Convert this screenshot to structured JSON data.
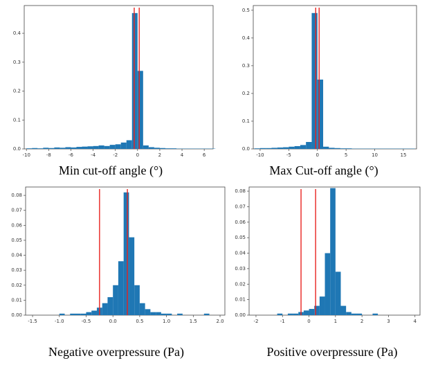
{
  "chart_data": [
    {
      "type": "histogram",
      "xlabel": "Min cut-off angle (°)",
      "color": "#1f77b4",
      "vline_color": "#e8231f",
      "bins": [
        -10,
        -9.5,
        -9,
        -8.5,
        -8,
        -7.5,
        -7,
        -6.5,
        -6,
        -5.5,
        -5,
        -4.5,
        -4,
        -3.5,
        -3,
        -2.5,
        -2,
        -1.5,
        -1,
        -0.5,
        0,
        0.5,
        1,
        1.5,
        2,
        2.5,
        3,
        3.5,
        4,
        4.5,
        5,
        5.5,
        6,
        6.5,
        7
      ],
      "values": [
        0.002,
        0.003,
        0.002,
        0.004,
        0.003,
        0.005,
        0.004,
        0.006,
        0.005,
        0.007,
        0.008,
        0.009,
        0.01,
        0.012,
        0.01,
        0.014,
        0.016,
        0.022,
        0.03,
        0.47,
        0.27,
        0.012,
        0.006,
        0.004,
        0.003,
        0.002,
        0.002,
        0.001,
        0.001,
        0.001,
        0.001,
        0.001,
        0.001,
        0.001
      ],
      "vlines": [
        -0.3,
        0.15
      ],
      "xlim": [
        -10.2,
        6.8
      ],
      "xticks": [
        -10,
        -8,
        -6,
        -4,
        -2,
        0,
        2,
        4,
        6
      ],
      "ylim": [
        0,
        0.496
      ],
      "yticks": [
        {
          "value": 0,
          "label": "0.0"
        },
        0.1,
        0.2,
        0.3,
        0.4
      ]
    },
    {
      "type": "histogram",
      "xlabel": "Max Cut-off angle (°)",
      "color": "#1f77b4",
      "vline_color": "#e8231f",
      "bins": [
        -11,
        -10,
        -9,
        -8,
        -7,
        -6,
        -5,
        -4,
        -3,
        -2,
        -1,
        0,
        1,
        2,
        3,
        4,
        5,
        6,
        7,
        8,
        9,
        10,
        11,
        12,
        13,
        14,
        15,
        16,
        17
      ],
      "values": [
        0.002,
        0.003,
        0.003,
        0.004,
        0.005,
        0.006,
        0.008,
        0.01,
        0.014,
        0.025,
        0.49,
        0.25,
        0.008,
        0.004,
        0.003,
        0.002,
        0.002,
        0.001,
        0.001,
        0.001,
        0.001,
        0.001,
        0.001,
        0.001,
        0.001,
        0.001,
        0.001,
        0.001
      ],
      "vlines": [
        -0.3,
        0.3
      ],
      "xlim": [
        -11.2,
        17.3
      ],
      "xticks": [
        -10,
        -5,
        0,
        5,
        10,
        15
      ],
      "ylim": [
        0,
        0.517
      ],
      "yticks": [
        {
          "value": 0,
          "label": "0.0"
        },
        0.1,
        0.2,
        0.3,
        0.4,
        0.5
      ]
    },
    {
      "type": "histogram",
      "xlabel": "Negative overpressure (Pa)",
      "color": "#1f77b4",
      "vline_color": "#e8231f",
      "bins": [
        -1.5,
        -1.4,
        -1.3,
        -1.2,
        -1.1,
        -1,
        -0.9,
        -0.8,
        -0.7,
        -0.6,
        -0.5,
        -0.4,
        -0.3,
        -0.2,
        -0.1,
        0,
        0.1,
        0.2,
        0.3,
        0.4,
        0.5,
        0.6,
        0.7,
        0.8,
        0.9,
        1,
        1.1,
        1.2,
        1.3,
        1.4,
        1.5,
        1.6,
        1.7,
        1.8,
        1.9,
        2
      ],
      "values": [
        0,
        0,
        0,
        0,
        0,
        0.001,
        0,
        0.001,
        0.001,
        0.001,
        0.002,
        0.003,
        0.005,
        0.008,
        0.012,
        0.02,
        0.036,
        0.082,
        0.052,
        0.02,
        0.008,
        0.004,
        0.002,
        0.002,
        0.001,
        0.001,
        0,
        0.001,
        0,
        0,
        0,
        0,
        0.001,
        0,
        0
      ],
      "vlines": [
        -0.25,
        0.27
      ],
      "xlim": [
        -1.63,
        2.09
      ],
      "xticks": [
        -1.5,
        {
          "value": -1,
          "label": "-1.0"
        },
        -0.5,
        {
          "value": 0,
          "label": "0.0"
        },
        0.5,
        {
          "value": 1,
          "label": "1.0"
        },
        1.5,
        {
          "value": 2,
          "label": "2.0"
        }
      ],
      "ylim": [
        0,
        0.0856
      ],
      "yticks": [
        {
          "value": 0,
          "label": "0.00"
        },
        0.01,
        0.02,
        0.03,
        0.04,
        0.05,
        0.06,
        0.07,
        0.08
      ]
    },
    {
      "type": "histogram",
      "xlabel": "Positive overpressure (Pa)",
      "color": "#1f77b4",
      "vline_color": "#e8231f",
      "bins": [
        -2,
        -1.8,
        -1.6,
        -1.4,
        -1.2,
        -1,
        -0.8,
        -0.6,
        -0.4,
        -0.2,
        0,
        0.2,
        0.4,
        0.6,
        0.8,
        1,
        1.2,
        1.4,
        1.6,
        1.8,
        2,
        2.2,
        2.4,
        2.6,
        2.8,
        3,
        3.2,
        3.4,
        3.6,
        3.8,
        4
      ],
      "values": [
        0,
        0,
        0,
        0,
        0.001,
        0,
        0.001,
        0.001,
        0.002,
        0.003,
        0.004,
        0.006,
        0.012,
        0.04,
        0.082,
        0.028,
        0.006,
        0.002,
        0.001,
        0.001,
        0,
        0,
        0.001,
        0,
        0,
        0,
        0,
        0,
        0,
        0
      ],
      "vlines": [
        -0.3,
        0.25
      ],
      "xlim": [
        -2.26,
        4.19
      ],
      "xticks": [
        -2,
        -1,
        0,
        1,
        2,
        3,
        4
      ],
      "ylim": [
        0,
        0.0827
      ],
      "yticks": [
        {
          "value": 0,
          "label": "0.00"
        },
        0.01,
        0.02,
        0.03,
        0.04,
        0.05,
        0.06,
        0.07,
        0.08
      ]
    }
  ]
}
